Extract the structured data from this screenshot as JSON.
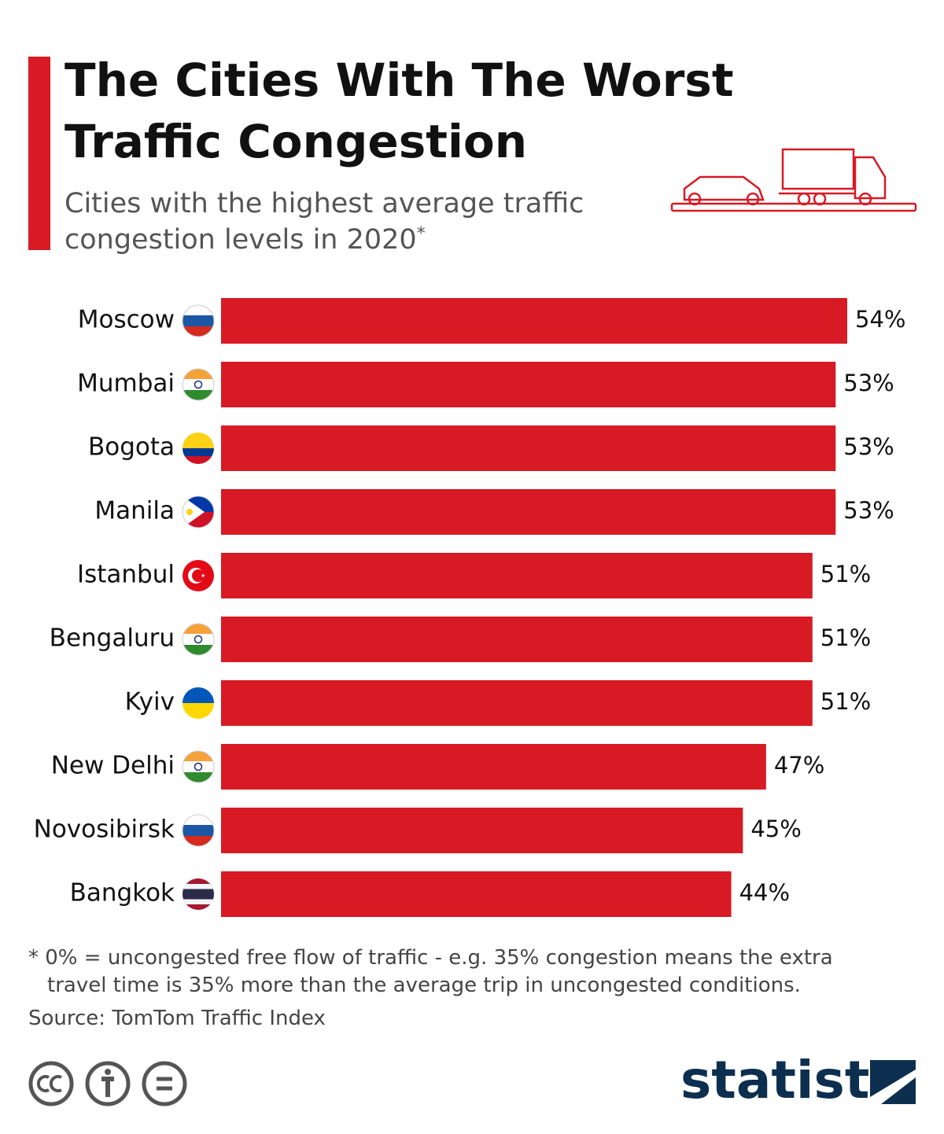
{
  "title": [
    "The Cities With The Worst",
    "Traffic Congestion"
  ],
  "subtitle": [
    "Cities with the highest average traffic",
    "congestion levels in 2020"
  ],
  "subtitle_mark": "*",
  "chart_data": {
    "type": "bar",
    "orientation": "horizontal",
    "color": "#d71a24",
    "categories": [
      "Moscow",
      "Mumbai",
      "Bogota",
      "Manila",
      "Istanbul",
      "Bengaluru",
      "Kyiv",
      "New Delhi",
      "Novosibirsk",
      "Bangkok"
    ],
    "values": [
      54,
      53,
      53,
      53,
      51,
      51,
      51,
      47,
      45,
      44
    ],
    "value_labels": [
      "54%",
      "53%",
      "53%",
      "53%",
      "51%",
      "51%",
      "51%",
      "47%",
      "45%",
      "44%"
    ]
  },
  "note": [
    "* 0% = uncongested free flow of traffic - e.g. 35% congestion means the extra",
    "travel time is 35% more than the average trip in uncongested conditions."
  ],
  "source": "Source: TomTom Traffic Index",
  "brand": "statista"
}
